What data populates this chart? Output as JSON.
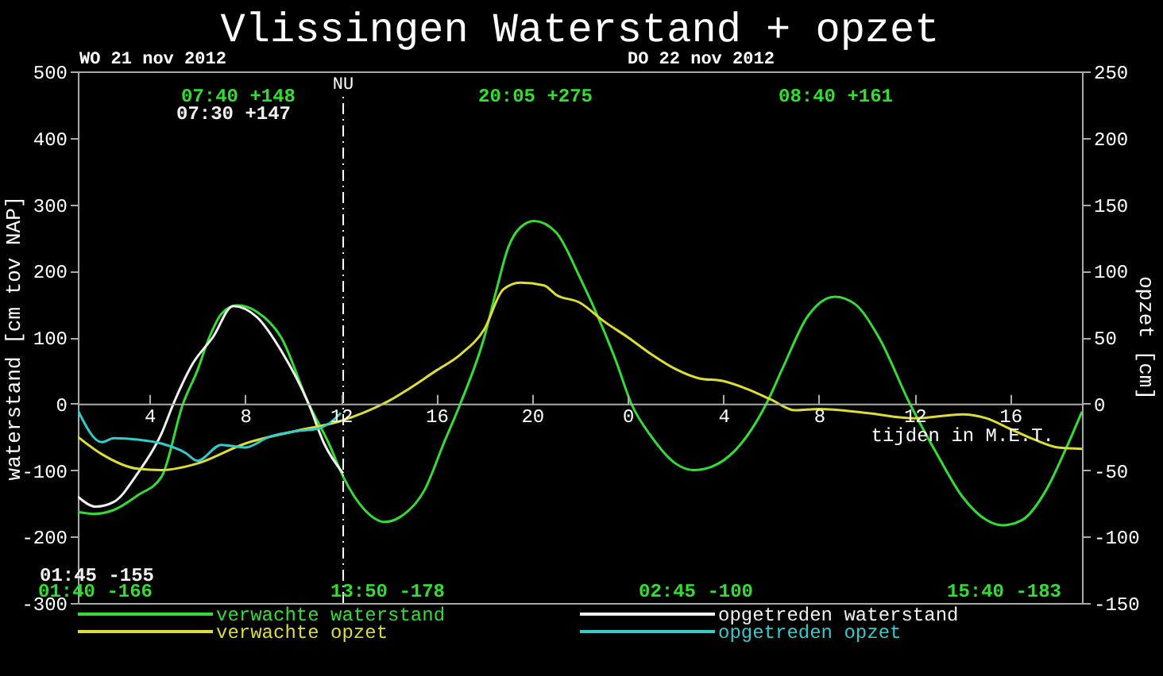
{
  "chart_data": {
    "type": "line",
    "title": "Vlissingen  Waterstand + opzet",
    "xlabel": "tijden in M.E.T.",
    "ylabel": "waterstand [cm tov NAP]",
    "y2label": "opzet [cm]",
    "xlim": [
      "2012-11-21T01:00",
      "2012-11-22T19:00"
    ],
    "xticks": [
      {
        "value": "2012-11-21T04:00",
        "label": "4"
      },
      {
        "value": "2012-11-21T08:00",
        "label": "8"
      },
      {
        "value": "2012-11-21T12:00",
        "label": "12"
      },
      {
        "value": "2012-11-21T16:00",
        "label": "16"
      },
      {
        "value": "2012-11-21T20:00",
        "label": "20"
      },
      {
        "value": "2012-11-22T00:00",
        "label": "0"
      },
      {
        "value": "2012-11-22T04:00",
        "label": "4"
      },
      {
        "value": "2012-11-22T08:00",
        "label": "8"
      },
      {
        "value": "2012-11-22T12:00",
        "label": "12"
      },
      {
        "value": "2012-11-22T16:00",
        "label": "16"
      }
    ],
    "ylim": [
      -300,
      500
    ],
    "yticks": [
      -300,
      -200,
      -100,
      0,
      100,
      200,
      300,
      400,
      500
    ],
    "y2lim": [
      -150,
      250
    ],
    "y2ticks": [
      -150,
      -100,
      -50,
      0,
      50,
      100,
      150,
      200,
      250
    ],
    "legend": "bottom",
    "series": [
      {
        "name": "verwachte waterstand",
        "color": "#33dd33",
        "x": [
          "2012-11-21T01:00",
          "2012-11-21T01:40",
          "2012-11-21T02:30",
          "2012-11-21T03:30",
          "2012-11-21T04:30",
          "2012-11-21T05:24",
          "2012-11-21T06:00",
          "2012-11-21T06:30",
          "2012-11-21T07:00",
          "2012-11-21T07:40",
          "2012-11-21T08:30",
          "2012-11-21T09:30",
          "2012-11-21T10:39",
          "2012-11-21T11:30",
          "2012-11-21T12:06",
          "2012-11-21T13:00",
          "2012-11-21T13:50",
          "2012-11-21T14:30",
          "2012-11-21T15:30",
          "2012-11-21T16:18",
          "2012-11-21T17:00",
          "2012-11-21T18:00",
          "2012-11-21T18:30",
          "2012-11-21T19:00",
          "2012-11-21T19:30",
          "2012-11-21T20:05",
          "2012-11-21T21:00",
          "2012-11-21T22:00",
          "2012-11-21T23:00",
          "2012-11-21T23:30",
          "2012-11-22T00:09",
          "2012-11-22T01:00",
          "2012-11-22T02:00",
          "2012-11-22T02:45",
          "2012-11-22T03:30",
          "2012-11-22T04:30",
          "2012-11-22T05:48",
          "2012-11-22T06:30",
          "2012-11-22T07:30",
          "2012-11-22T08:40",
          "2012-11-22T09:30",
          "2012-11-22T10:30",
          "2012-11-22T11:48",
          "2012-11-22T13:00",
          "2012-11-22T14:00",
          "2012-11-22T15:00",
          "2012-11-22T15:40",
          "2012-11-22T16:30",
          "2012-11-22T17:30",
          "2012-11-22T18:18",
          "2012-11-22T19:00"
        ],
        "values": [
          -163,
          -166,
          -160,
          -138,
          -110,
          0,
          50,
          100,
          135,
          148,
          138,
          100,
          0,
          -60,
          -110,
          -160,
          -178,
          -170,
          -130,
          -60,
          0,
          100,
          170,
          235,
          265,
          275,
          258,
          190,
          110,
          65,
          0,
          -50,
          -90,
          -100,
          -95,
          -70,
          0,
          55,
          130,
          161,
          150,
          100,
          0,
          -80,
          -140,
          -175,
          -183,
          -175,
          -130,
          -70,
          -12
        ]
      },
      {
        "name": "opgetreden waterstand",
        "color": "#f0f0f0",
        "x": [
          "2012-11-21T01:00",
          "2012-11-21T01:45",
          "2012-11-21T02:30",
          "2012-11-21T03:30",
          "2012-11-21T04:30",
          "2012-11-21T05:00",
          "2012-11-21T05:48",
          "2012-11-21T06:39",
          "2012-11-21T07:30",
          "2012-11-21T08:30",
          "2012-11-21T09:30",
          "2012-11-21T10:39",
          "2012-11-21T11:18",
          "2012-11-21T12:06"
        ],
        "values": [
          -140,
          -155,
          -148,
          -105,
          -45,
          0,
          60,
          100,
          147,
          130,
          80,
          0,
          -60,
          -105
        ]
      },
      {
        "name": "verwachte opzet",
        "color": "#dddd33",
        "axis": "y2",
        "x": [
          "2012-11-21T01:00",
          "2012-11-21T02:00",
          "2012-11-21T03:30",
          "2012-11-21T04:30",
          "2012-11-21T06:00",
          "2012-11-21T08:00",
          "2012-11-21T10:00",
          "2012-11-21T12:00",
          "2012-11-21T14:00",
          "2012-11-21T16:00",
          "2012-11-21T17:00",
          "2012-11-21T18:00",
          "2012-11-21T18:48",
          "2012-11-21T19:30",
          "2012-11-21T20:30",
          "2012-11-21T21:00",
          "2012-11-21T22:00",
          "2012-11-21T23:00",
          "2012-11-22T00:00",
          "2012-11-22T01:00",
          "2012-11-22T02:00",
          "2012-11-22T03:00",
          "2012-11-22T04:00",
          "2012-11-22T05:00",
          "2012-11-22T06:00",
          "2012-11-22T07:00",
          "2012-11-22T08:00",
          "2012-11-22T10:00",
          "2012-11-22T12:00",
          "2012-11-22T14:00",
          "2012-11-22T15:00",
          "2012-11-22T16:00",
          "2012-11-22T17:00",
          "2012-11-22T18:00",
          "2012-11-22T19:00"
        ],
        "values": [
          -25,
          -38,
          -49,
          -50,
          -45,
          -30,
          -21,
          -13,
          2,
          25,
          37,
          56,
          86,
          91,
          89,
          82,
          76,
          62,
          50,
          37,
          26,
          19,
          17,
          11,
          3,
          -5,
          -4,
          -7,
          -11,
          -8,
          -11,
          -19,
          -27,
          -33,
          -34
        ]
      },
      {
        "name": "opgetreden opzet",
        "color": "#33cccc",
        "axis": "y2",
        "x": [
          "2012-11-21T01:00",
          "2012-11-21T02:00",
          "2012-11-21T02:30",
          "2012-11-21T03:30",
          "2012-11-21T04:30",
          "2012-11-21T05:30",
          "2012-11-21T06:00",
          "2012-11-21T07:00",
          "2012-11-21T08:00",
          "2012-11-21T09:00",
          "2012-11-21T10:00",
          "2012-11-21T11:00",
          "2012-11-21T11:30",
          "2012-11-21T12:00"
        ],
        "values": [
          -5,
          -29,
          -26,
          -27,
          -30,
          -37,
          -43,
          -31,
          -33,
          -25,
          -21,
          -19,
          -15,
          -7
        ]
      }
    ],
    "ref_lines": [
      {
        "axis": "x",
        "value": "2012-11-21T12:06",
        "label": "NU",
        "color": "#ffffff",
        "line_style": "dashed"
      }
    ],
    "annotations": [
      "WO 21 nov 2012",
      "DO 22 nov 2012",
      "07:40 +148",
      "07:30 +147",
      "20:05 +275",
      "08:40 +161",
      "01:40 -166",
      "01:45 -155",
      "13:50 -178",
      "02:45 -100",
      "15:40 -183"
    ]
  }
}
